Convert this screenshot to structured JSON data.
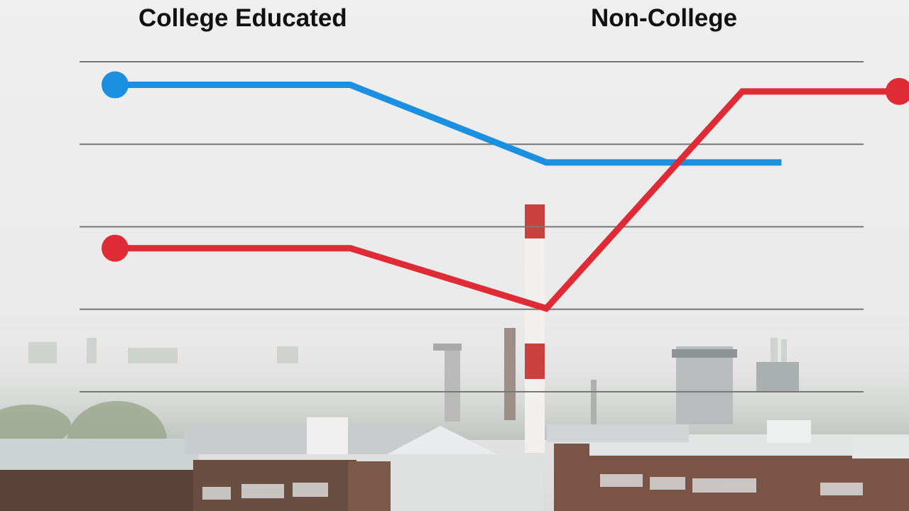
{
  "labels": {
    "left": "College Educated",
    "right": "Non-College"
  },
  "colors": {
    "college": "#1b8fe0",
    "non_college": "#df2b36",
    "gridline": "#777777",
    "text": "#111111"
  },
  "background": {
    "description_icons": [
      "factory-smokestack",
      "industrial-buildings",
      "hazy-skyline"
    ]
  },
  "chart_data": {
    "type": "line",
    "title": "",
    "xlabel": "",
    "ylabel": "",
    "ylim": [
      0,
      4
    ],
    "xlim": [
      0,
      4
    ],
    "grid": true,
    "gridlines": [
      0,
      1,
      2,
      3,
      4
    ],
    "series": [
      {
        "name": "College Educated",
        "color": "#1b8fe0",
        "x": [
          0,
          1.2,
          2.2,
          3.4
        ],
        "y": [
          3.72,
          3.72,
          2.78,
          2.78
        ],
        "marker_at_start": true,
        "marker_at_end": false
      },
      {
        "name": "Non-College",
        "color": "#df2b36",
        "x": [
          0,
          1.2,
          2.2,
          3.2,
          4
        ],
        "y": [
          1.74,
          1.74,
          1.01,
          3.64,
          3.64
        ],
        "marker_at_start": true,
        "marker_at_end": true
      }
    ]
  }
}
